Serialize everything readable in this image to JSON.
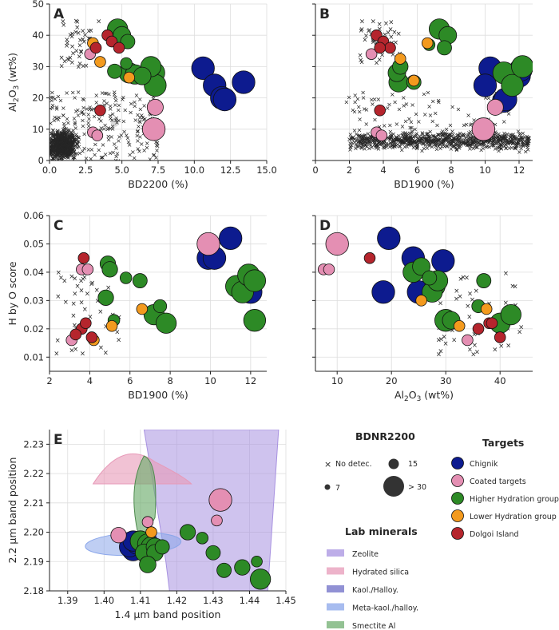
{
  "colors": {
    "Chignik": "#0d1b8f",
    "Coated targets": "#e48fb3",
    "Higher Hydration group": "#2d8a26",
    "Lower Hydration group": "#f39a1e",
    "Dolgoi Island": "#b5252d",
    "Zeolite": "#a791e0",
    "Hydrated silica": "#e79ab8",
    "Kaol./Halloy.": "#6c6cc5",
    "Meta-kaol./halloy.": "#8aa6ea",
    "Smectite Al": "#6fae6f"
  },
  "legends": {
    "bdnr_title": "BDNR2200",
    "bdnr_items": [
      {
        "label": "No detec.",
        "marker": "x"
      },
      {
        "label": "15",
        "marker": "circle-medium"
      },
      {
        "label": "7",
        "marker": "circle-small"
      },
      {
        "label": "> 30",
        "marker": "circle-large"
      }
    ],
    "targets_title": "Targets",
    "targets": [
      "Chignik",
      "Coated targets",
      "Higher Hydration group",
      "Lower Hydration group",
      "Dolgoi Island"
    ],
    "lab_title": "Lab minerals",
    "lab": [
      "Zeolite",
      "Hydrated silica",
      "Kaol./Halloy.",
      "Meta-kaol./halloy.",
      "Smectite Al"
    ]
  },
  "chart_data": [
    {
      "panel": "A",
      "type": "scatter",
      "xlabel": "BD2200 (%)",
      "ylabel": "Al2O3 (wt%)",
      "xlim": [
        0,
        15
      ],
      "ylim": [
        0,
        50
      ],
      "xticks": [
        "0.0",
        "2.5",
        "5.0",
        "7.5",
        "10.0",
        "12.5",
        "15.0"
      ],
      "yticks": [
        "0",
        "10",
        "20",
        "30",
        "40",
        "50"
      ],
      "background": "dense grey x cluster near BD2200 0-2, Al2O3 0-10 wt%",
      "series": [
        {
          "name": "Chignik",
          "points": [
            [
              10.6,
              29.5,
              30
            ],
            [
              11.4,
              24,
              30
            ],
            [
              11.9,
              20,
              30
            ],
            [
              12.1,
              19.5,
              30
            ],
            [
              13.4,
              25,
              30
            ]
          ]
        },
        {
          "name": "Coated targets",
          "points": [
            [
              7.2,
              10,
              30
            ],
            [
              7.3,
              17,
              15
            ],
            [
              2.8,
              34,
              7
            ],
            [
              3.0,
              9,
              7
            ],
            [
              3.3,
              8,
              7
            ]
          ]
        },
        {
          "name": "Higher Hydration group",
          "points": [
            [
              4.7,
              42,
              24
            ],
            [
              5.0,
              40,
              18
            ],
            [
              5.4,
              38,
              12
            ],
            [
              4.5,
              28.5,
              12
            ],
            [
              5.3,
              31,
              8
            ],
            [
              5.5,
              28,
              24
            ],
            [
              5.9,
              27.5,
              22
            ],
            [
              6.4,
              27,
              18
            ],
            [
              7.2,
              28,
              28
            ],
            [
              7.3,
              24,
              28
            ],
            [
              7.0,
              30,
              24
            ]
          ]
        },
        {
          "name": "Lower Hydration group",
          "points": [
            [
              3.0,
              37.5,
              7
            ],
            [
              3.5,
              31.5,
              7
            ],
            [
              5.5,
              26.5,
              7
            ]
          ]
        },
        {
          "name": "Dolgoi Island",
          "points": [
            [
              4.0,
              40,
              7
            ],
            [
              4.3,
              38,
              7
            ],
            [
              4.8,
              36,
              7
            ],
            [
              3.5,
              16,
              7
            ],
            [
              3.2,
              36,
              7
            ]
          ]
        }
      ]
    },
    {
      "panel": "B",
      "type": "scatter",
      "xlabel": "BD1900 (%)",
      "ylabel": "",
      "xlim": [
        0,
        12.8
      ],
      "ylim": [
        0,
        50
      ],
      "xticks": [
        "0",
        "2",
        "4",
        "6",
        "8",
        "10",
        "12"
      ],
      "yticks": [],
      "background": "grey x cloud spread BD1900 2-12, Al2O3 2-12 wt%",
      "series": [
        {
          "name": "Chignik",
          "points": [
            [
              10.3,
              29.5,
              30
            ],
            [
              10.0,
              24,
              30
            ],
            [
              11.1,
              19,
              30
            ],
            [
              11.2,
              19.5,
              30
            ],
            [
              12.0,
              27,
              30
            ],
            [
              12.1,
              29,
              30
            ]
          ]
        },
        {
          "name": "Coated targets",
          "points": [
            [
              9.9,
              10,
              30
            ],
            [
              10.6,
              17,
              15
            ],
            [
              3.3,
              34,
              7
            ],
            [
              3.6,
              9,
              7
            ],
            [
              3.9,
              8,
              7
            ]
          ]
        },
        {
          "name": "Higher Hydration group",
          "points": [
            [
              7.3,
              42,
              24
            ],
            [
              7.8,
              40,
              18
            ],
            [
              7.6,
              36,
              12
            ],
            [
              5.8,
              25,
              12
            ],
            [
              6.7,
              37,
              8
            ],
            [
              4.8,
              28,
              18
            ],
            [
              4.9,
              25,
              22
            ],
            [
              11.1,
              28,
              28
            ],
            [
              11.6,
              24,
              28
            ],
            [
              12.2,
              30,
              28
            ],
            [
              5.0,
              30,
              14
            ]
          ]
        },
        {
          "name": "Lower Hydration group",
          "points": [
            [
              6.6,
              37.5,
              7
            ],
            [
              5.0,
              32.5,
              7
            ],
            [
              5.8,
              25.5,
              7
            ]
          ]
        },
        {
          "name": "Dolgoi Island",
          "points": [
            [
              3.6,
              40,
              7
            ],
            [
              4.0,
              38,
              7
            ],
            [
              4.4,
              36,
              7
            ],
            [
              3.8,
              16,
              7
            ],
            [
              3.8,
              36,
              7
            ]
          ]
        }
      ]
    },
    {
      "panel": "C",
      "type": "scatter",
      "xlabel": "BD1900 (%)",
      "ylabel": "H by O score",
      "xlim": [
        2.0,
        12.8
      ],
      "ylim": [
        0.005,
        0.06
      ],
      "xticks": [
        "2",
        "4",
        "6",
        "8",
        "10",
        "12"
      ],
      "yticks": [
        "0.01",
        "0.02",
        "0.03",
        "0.04",
        "0.05",
        "0.06"
      ],
      "series": [
        {
          "name": "Chignik",
          "points": [
            [
              9.9,
              0.045,
              30
            ],
            [
              10.2,
              0.045,
              30
            ],
            [
              11.0,
              0.052,
              30
            ],
            [
              12.0,
              0.033,
              30
            ]
          ]
        },
        {
          "name": "Coated targets",
          "points": [
            [
              9.9,
              0.05,
              30
            ],
            [
              3.6,
              0.041,
              7
            ],
            [
              3.9,
              0.041,
              7
            ],
            [
              3.1,
              0.016,
              7
            ]
          ]
        },
        {
          "name": "Higher Hydration group",
          "points": [
            [
              4.9,
              0.043,
              14
            ],
            [
              5.0,
              0.041,
              14
            ],
            [
              5.8,
              0.038,
              8
            ],
            [
              6.5,
              0.037,
              12
            ],
            [
              4.8,
              0.031,
              14
            ],
            [
              7.2,
              0.025,
              24
            ],
            [
              7.8,
              0.022,
              24
            ],
            [
              7.5,
              0.028,
              10
            ],
            [
              5.2,
              0.023,
              8
            ],
            [
              11.3,
              0.035,
              28
            ],
            [
              11.6,
              0.033,
              28
            ],
            [
              11.9,
              0.039,
              28
            ],
            [
              12.2,
              0.037,
              28
            ],
            [
              12.2,
              0.023,
              28
            ]
          ]
        },
        {
          "name": "Lower Hydration group",
          "points": [
            [
              5.1,
              0.021,
              7
            ],
            [
              6.6,
              0.027,
              7
            ],
            [
              4.2,
              0.016,
              7
            ]
          ]
        },
        {
          "name": "Dolgoi Island",
          "points": [
            [
              3.7,
              0.045,
              7
            ],
            [
              3.6,
              0.02,
              7
            ],
            [
              3.8,
              0.022,
              7
            ],
            [
              3.3,
              0.018,
              7
            ],
            [
              4.1,
              0.017,
              7
            ]
          ]
        }
      ]
    },
    {
      "panel": "D",
      "type": "scatter",
      "xlabel": "Al2O3 (wt%)",
      "ylabel": "",
      "xlim": [
        6,
        46
      ],
      "ylim": [
        0.005,
        0.06
      ],
      "xticks": [
        "10",
        "20",
        "30",
        "40"
      ],
      "yticks": [],
      "series": [
        {
          "name": "Chignik",
          "points": [
            [
              19.5,
              0.052,
              30
            ],
            [
              24,
              0.045,
              30
            ],
            [
              29.5,
              0.044,
              30
            ],
            [
              25,
              0.033,
              30
            ],
            [
              18.5,
              0.033,
              30
            ]
          ]
        },
        {
          "name": "Coated targets",
          "points": [
            [
              10,
              0.05,
              30
            ],
            [
              7.5,
              0.041,
              7
            ],
            [
              8.5,
              0.041,
              7
            ],
            [
              34,
              0.016,
              7
            ]
          ]
        },
        {
          "name": "Higher Hydration group",
          "points": [
            [
              24,
              0.04,
              24
            ],
            [
              25.5,
              0.042,
              18
            ],
            [
              27,
              0.038,
              12
            ],
            [
              28,
              0.035,
              24
            ],
            [
              27.5,
              0.033,
              24
            ],
            [
              28.5,
              0.037,
              24
            ],
            [
              30,
              0.023,
              28
            ],
            [
              31,
              0.023,
              18
            ],
            [
              36,
              0.028,
              10
            ],
            [
              37,
              0.037,
              12
            ],
            [
              40,
              0.022,
              24
            ],
            [
              42,
              0.025,
              24
            ]
          ]
        },
        {
          "name": "Lower Hydration group",
          "points": [
            [
              32.5,
              0.021,
              7
            ],
            [
              37.5,
              0.027,
              7
            ],
            [
              25.5,
              0.03,
              7
            ]
          ]
        },
        {
          "name": "Dolgoi Island",
          "points": [
            [
              16,
              0.045,
              7
            ],
            [
              36,
              0.02,
              7
            ],
            [
              38,
              0.022,
              7
            ],
            [
              38.5,
              0.022,
              7
            ],
            [
              40,
              0.017,
              7
            ]
          ]
        }
      ]
    },
    {
      "panel": "E",
      "type": "scatter",
      "xlabel": "1.4 μm band position",
      "ylabel": "2.2 μm band position",
      "xlim": [
        1.385,
        1.45
      ],
      "ylim": [
        2.18,
        2.235
      ],
      "xticks": [
        "1.39",
        "1.40",
        "1.41",
        "1.42",
        "1.43",
        "1.44",
        "1.45"
      ],
      "yticks": [
        "2.18",
        "2.19",
        "2.20",
        "2.21",
        "2.22",
        "2.23"
      ],
      "series": [
        {
          "name": "Chignik",
          "points": [
            [
              1.407,
              2.195,
              24
            ],
            [
              1.408,
              2.194,
              28
            ],
            [
              1.409,
              2.196,
              24
            ],
            [
              1.408,
              2.197,
              24
            ]
          ]
        },
        {
          "name": "Coated targets",
          "points": [
            [
              1.432,
              2.211,
              30
            ],
            [
              1.404,
              2.199,
              14
            ],
            [
              1.412,
              2.2035,
              7
            ],
            [
              1.431,
              2.204,
              7
            ]
          ]
        },
        {
          "name": "Higher Hydration group",
          "points": [
            [
              1.41,
              2.197,
              24
            ],
            [
              1.412,
              2.196,
              24
            ],
            [
              1.413,
              2.195,
              24
            ],
            [
              1.411,
              2.193,
              18
            ],
            [
              1.414,
              2.195,
              18
            ],
            [
              1.414,
              2.193,
              16
            ],
            [
              1.416,
              2.195,
              12
            ],
            [
              1.412,
              2.189,
              16
            ],
            [
              1.423,
              2.2,
              14
            ],
            [
              1.427,
              2.198,
              8
            ],
            [
              1.43,
              2.193,
              12
            ],
            [
              1.433,
              2.187,
              12
            ],
            [
              1.438,
              2.188,
              14
            ],
            [
              1.443,
              2.184,
              24
            ],
            [
              1.442,
              2.19,
              7
            ]
          ]
        },
        {
          "name": "Lower Hydration group",
          "points": [
            [
              1.413,
              2.2,
              7
            ]
          ]
        },
        {
          "name": "Dolgoi Island",
          "points": []
        }
      ]
    }
  ]
}
